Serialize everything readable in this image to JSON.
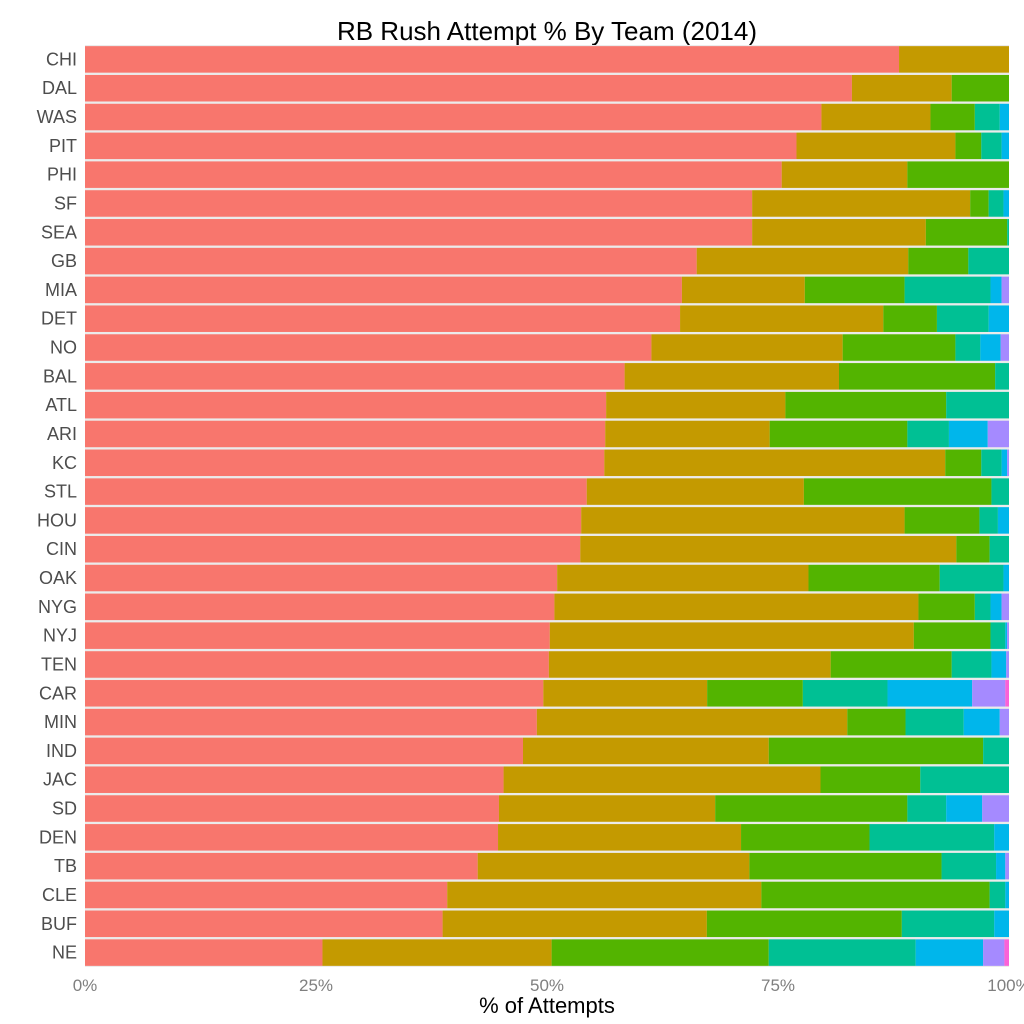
{
  "chart_data": {
    "type": "bar",
    "orientation": "horizontal",
    "stacked": "percent",
    "title": "RB Rush Attempt % By Team (2014)",
    "xlabel": "% of Attempts",
    "ylabel": "",
    "xlim": [
      0,
      100
    ],
    "x_ticks": [
      "0%",
      "25%",
      "50%",
      "75%",
      "100%"
    ],
    "legend": "none",
    "grid": true,
    "series_colors": [
      "#F8766D",
      "#C49A00",
      "#53B400",
      "#00C094",
      "#00B6EB",
      "#A58AFF",
      "#FB61D7"
    ],
    "categories": [
      "CHI",
      "DAL",
      "WAS",
      "PIT",
      "PHI",
      "SF",
      "SEA",
      "GB",
      "MIA",
      "DET",
      "NO",
      "BAL",
      "ATL",
      "ARI",
      "KC",
      "STL",
      "HOU",
      "CIN",
      "OAK",
      "NYG",
      "NYJ",
      "TEN",
      "CAR",
      "MIN",
      "IND",
      "JAC",
      "SD",
      "DEN",
      "TB",
      "CLE",
      "BUF",
      "NE"
    ],
    "values": [
      [
        88.1,
        11.9,
        0,
        0,
        0,
        0,
        0
      ],
      [
        83.0,
        10.8,
        6.2,
        0,
        0,
        0,
        0
      ],
      [
        79.7,
        11.8,
        4.8,
        2.7,
        1.0,
        0,
        0
      ],
      [
        77.0,
        17.2,
        2.8,
        2.2,
        0.8,
        0,
        0
      ],
      [
        75.4,
        13.6,
        11.0,
        0,
        0,
        0,
        0
      ],
      [
        72.2,
        23.6,
        2.0,
        1.6,
        0.6,
        0,
        0
      ],
      [
        72.2,
        18.8,
        8.8,
        0.2,
        0,
        0,
        0
      ],
      [
        66.2,
        22.9,
        6.5,
        4.4,
        0,
        0,
        0
      ],
      [
        64.6,
        13.3,
        10.8,
        9.3,
        1.2,
        0.8,
        0
      ],
      [
        64.4,
        22.0,
        5.8,
        5.6,
        2.2,
        0,
        0
      ],
      [
        61.3,
        20.7,
        12.2,
        2.7,
        2.2,
        0.9,
        0
      ],
      [
        58.4,
        23.2,
        16.9,
        1.5,
        0,
        0,
        0
      ],
      [
        56.4,
        19.4,
        17.4,
        6.8,
        0,
        0,
        0
      ],
      [
        56.3,
        17.8,
        14.9,
        4.5,
        4.2,
        2.3,
        0
      ],
      [
        56.2,
        36.9,
        3.9,
        2.2,
        0.6,
        0.2,
        0
      ],
      [
        54.3,
        23.5,
        20.3,
        1.9,
        0,
        0,
        0
      ],
      [
        53.7,
        35.0,
        8.1,
        2.0,
        1.2,
        0,
        0
      ],
      [
        53.6,
        40.7,
        3.6,
        2.1,
        0,
        0,
        0
      ],
      [
        51.1,
        27.2,
        14.2,
        6.9,
        0.6,
        0,
        0
      ],
      [
        50.8,
        39.4,
        6.1,
        1.7,
        1.2,
        0.8,
        0
      ],
      [
        50.3,
        39.4,
        8.3,
        1.6,
        0.2,
        0.2,
        0
      ],
      [
        50.2,
        30.5,
        13.1,
        4.3,
        1.6,
        0.3,
        0
      ],
      [
        49.8,
        17.8,
        10.4,
        9.2,
        9.2,
        3.6,
        0.4
      ],
      [
        48.9,
        33.6,
        6.3,
        6.3,
        3.9,
        1.0,
        0
      ],
      [
        47.4,
        26.6,
        23.2,
        2.8,
        0,
        0,
        0
      ],
      [
        45.3,
        34.3,
        10.8,
        9.6,
        0,
        0,
        0
      ],
      [
        44.8,
        23.4,
        20.8,
        4.2,
        3.9,
        2.9,
        0
      ],
      [
        44.7,
        26.3,
        13.9,
        13.5,
        1.6,
        0,
        0
      ],
      [
        42.5,
        29.4,
        20.8,
        5.9,
        1.0,
        0.4,
        0
      ],
      [
        39.2,
        34.0,
        24.7,
        1.7,
        0.4,
        0,
        0
      ],
      [
        38.7,
        28.6,
        21.1,
        10.0,
        1.6,
        0,
        0
      ],
      [
        25.7,
        24.8,
        23.5,
        15.9,
        7.3,
        2.3,
        0.5
      ]
    ]
  }
}
